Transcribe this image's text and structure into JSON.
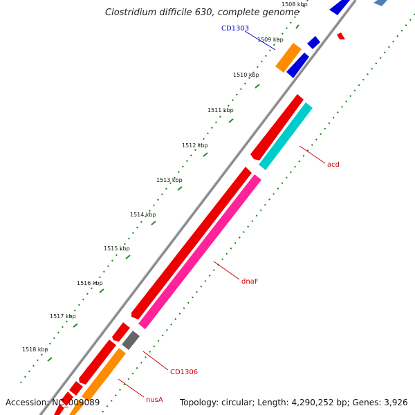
{
  "header": {
    "title": "Clostridium difficile 630, complete genome"
  },
  "footer": {
    "accession": "Accession: NC_009089",
    "summary": "Topology: circular; Length: 4,290,252 bp; Genes: 3,926"
  },
  "ruler": {
    "ticks": [
      "1509 kbp",
      "1510 kbp",
      "1511 kbp",
      "1512 kbp",
      "1513 kbp",
      "1514 kbp",
      "1515 kbp",
      "1516 kbp",
      "1517 kbp",
      "1518 kbp"
    ],
    "partial_tick": "1508 kbp"
  },
  "gene_labels": {
    "cd1303": "CD1303",
    "acd": "acd",
    "dnaf": "dnaF",
    "cd1306": "CD1306",
    "nusa": "nusA"
  },
  "colors": {
    "backbone": "#8a8a8a",
    "forward_gene": "#ee0000",
    "reverse_gene": "#0000dd",
    "cyan_gene": "#00cccc",
    "pink_gene": "#ff2299",
    "orange_gene": "#ff8c00",
    "gray_gene": "#666666",
    "ruler_dots": "#228822",
    "label_red": "#cc0000",
    "label_blue": "#0000cc"
  }
}
